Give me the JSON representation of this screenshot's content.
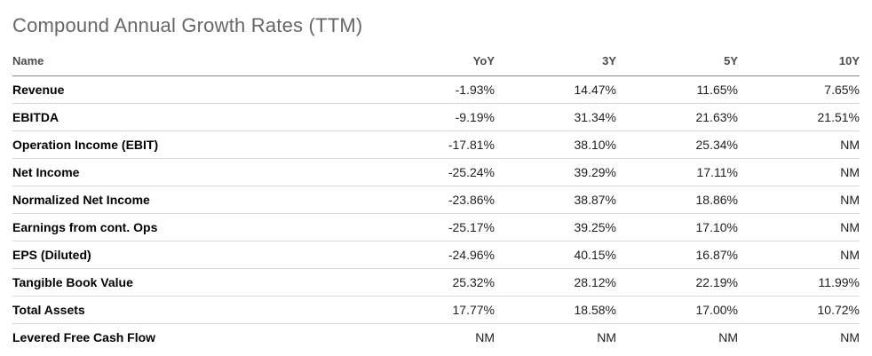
{
  "title": "Compound Annual Growth Rates (TTM)",
  "table": {
    "columns": [
      "Name",
      "YoY",
      "3Y",
      "5Y",
      "10Y"
    ],
    "rows": [
      {
        "name": "Revenue",
        "values": [
          "-1.93%",
          "14.47%",
          "11.65%",
          "7.65%"
        ]
      },
      {
        "name": "EBITDA",
        "values": [
          "-9.19%",
          "31.34%",
          "21.63%",
          "21.51%"
        ]
      },
      {
        "name": "Operation Income (EBIT)",
        "values": [
          "-17.81%",
          "38.10%",
          "25.34%",
          "NM"
        ]
      },
      {
        "name": "Net Income",
        "values": [
          "-25.24%",
          "39.29%",
          "17.11%",
          "NM"
        ]
      },
      {
        "name": "Normalized Net Income",
        "values": [
          "-23.86%",
          "38.87%",
          "18.86%",
          "NM"
        ]
      },
      {
        "name": "Earnings from cont. Ops",
        "values": [
          "-25.17%",
          "39.25%",
          "17.10%",
          "NM"
        ]
      },
      {
        "name": "EPS (Diluted)",
        "values": [
          "-24.96%",
          "40.15%",
          "16.87%",
          "NM"
        ]
      },
      {
        "name": "Tangible Book Value",
        "values": [
          "25.32%",
          "28.12%",
          "22.19%",
          "11.99%"
        ]
      },
      {
        "name": "Total Assets",
        "values": [
          "17.77%",
          "18.58%",
          "17.00%",
          "10.72%"
        ]
      },
      {
        "name": "Levered Free Cash Flow",
        "values": [
          "NM",
          "NM",
          "NM",
          "NM"
        ]
      }
    ]
  },
  "chart_data": {
    "type": "table",
    "title": "Compound Annual Growth Rates (TTM)",
    "columns": [
      "Name",
      "YoY",
      "3Y",
      "5Y",
      "10Y"
    ],
    "rows": [
      [
        "Revenue",
        "-1.93%",
        "14.47%",
        "11.65%",
        "7.65%"
      ],
      [
        "EBITDA",
        "-9.19%",
        "31.34%",
        "21.63%",
        "21.51%"
      ],
      [
        "Operation Income (EBIT)",
        "-17.81%",
        "38.10%",
        "25.34%",
        "NM"
      ],
      [
        "Net Income",
        "-25.24%",
        "39.29%",
        "17.11%",
        "NM"
      ],
      [
        "Normalized Net Income",
        "-23.86%",
        "38.87%",
        "18.86%",
        "NM"
      ],
      [
        "Earnings from cont. Ops",
        "-25.17%",
        "39.25%",
        "17.10%",
        "NM"
      ],
      [
        "EPS (Diluted)",
        "-24.96%",
        "40.15%",
        "16.87%",
        "NM"
      ],
      [
        "Tangible Book Value",
        "25.32%",
        "28.12%",
        "22.19%",
        "11.99%"
      ],
      [
        "Total Assets",
        "17.77%",
        "18.58%",
        "17.00%",
        "10.72%"
      ],
      [
        "Levered Free Cash Flow",
        "NM",
        "NM",
        "NM",
        "NM"
      ]
    ]
  },
  "colors": {
    "title": "#666666",
    "header_text": "#4d4d4d",
    "row_label": "#000000",
    "value_text": "#1f1f1f",
    "header_border": "#8c8c8c",
    "row_border": "#d9d9d9",
    "background": "#ffffff"
  }
}
